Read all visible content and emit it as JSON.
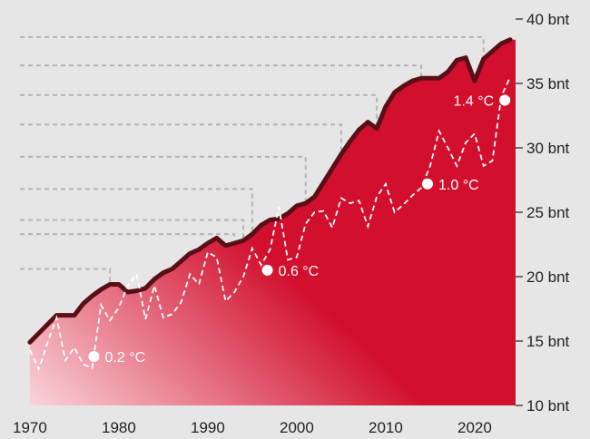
{
  "chart_data": {
    "type": "area",
    "title": "",
    "xlabel": "",
    "ylabel": "",
    "xlim": [
      1969.7,
      2024.6
    ],
    "ylim": [
      10,
      40
    ],
    "x_ticks": [
      "1970",
      "1980",
      "1990",
      "2000",
      "2010",
      "2020"
    ],
    "y_ticks": [
      {
        "value": 10,
        "label": "10 bnt"
      },
      {
        "value": 15,
        "label": "15 bnt"
      },
      {
        "value": 20,
        "label": "20 bnt"
      },
      {
        "value": 25,
        "label": "25 bnt"
      },
      {
        "value": 30,
        "label": "30 bnt"
      },
      {
        "value": 35,
        "label": "35 bnt"
      },
      {
        "value": 40,
        "label": "40 bnt"
      }
    ],
    "emissions": {
      "x": [
        1970,
        1971,
        1972,
        1973,
        1974,
        1975,
        1976,
        1977,
        1978,
        1979,
        1980,
        1981,
        1982,
        1983,
        1984,
        1985,
        1986,
        1987,
        1988,
        1989,
        1990,
        1991,
        1992,
        1993,
        1994,
        1995,
        1996,
        1997,
        1998,
        1999,
        2000,
        2001,
        2002,
        2003,
        2004,
        2005,
        2006,
        2007,
        2008,
        2009,
        2010,
        2011,
        2012,
        2013,
        2014,
        2015,
        2016,
        2017,
        2018,
        2019,
        2020,
        2021,
        2022,
        2023,
        2024
      ],
      "values": [
        14.9,
        15.6,
        16.3,
        17.0,
        17.0,
        17.0,
        17.9,
        18.5,
        19.0,
        19.4,
        19.4,
        18.8,
        18.9,
        19.1,
        19.8,
        20.3,
        20.6,
        21.2,
        21.8,
        22.1,
        22.6,
        23.0,
        22.4,
        22.6,
        22.8,
        23.3,
        24.0,
        24.4,
        24.5,
        24.9,
        25.5,
        25.7,
        26.2,
        27.3,
        28.4,
        29.5,
        30.5,
        31.4,
        32.0,
        31.5,
        33.2,
        34.3,
        34.8,
        35.2,
        35.4,
        35.4,
        35.4,
        35.9,
        36.8,
        37.0,
        35.2,
        36.9,
        37.5,
        38.1,
        38.4
      ]
    },
    "temperature": {
      "x": [
        1970,
        1971,
        1972,
        1973,
        1974,
        1975,
        1976,
        1977,
        1978,
        1979,
        1980,
        1981,
        1982,
        1983,
        1984,
        1985,
        1986,
        1987,
        1988,
        1989,
        1990,
        1991,
        1992,
        1993,
        1994,
        1995,
        1996,
        1997,
        1998,
        1999,
        2000,
        2001,
        2002,
        2003,
        2004,
        2005,
        2006,
        2007,
        2008,
        2009,
        2010,
        2011,
        2012,
        2013,
        2014,
        2015,
        2016,
        2017,
        2018,
        2019,
        2020,
        2021,
        2022,
        2023,
        2024
      ],
      "values": [
        14.3,
        12.8,
        14.9,
        16.8,
        13.5,
        14.5,
        13.2,
        12.9,
        17.8,
        16.6,
        17.6,
        19.3,
        20.2,
        16.7,
        19.3,
        16.8,
        17.1,
        18.0,
        20.2,
        19.4,
        21.9,
        21.5,
        18.1,
        18.8,
        20.0,
        22.2,
        20.9,
        22.1,
        25.4,
        21.3,
        21.5,
        24.1,
        25.0,
        25.1,
        23.8,
        26.1,
        25.7,
        25.9,
        23.9,
        26.2,
        27.2,
        25.0,
        25.6,
        26.3,
        26.9,
        28.6,
        31.3,
        30.0,
        28.6,
        30.4,
        31.1,
        28.6,
        29.0,
        34.0,
        35.5
      ]
    },
    "annotations": [
      {
        "x": 1977.2,
        "y": 13.8,
        "label": "0.2 °C"
      },
      {
        "x": 1996.7,
        "y": 20.5,
        "label": "0.6 °C"
      },
      {
        "x": 2014.7,
        "y": 27.2,
        "label": "1.0 °C"
      },
      {
        "x": 2023.4,
        "y": 33.7,
        "label": "1.4 °C"
      }
    ],
    "guide_lines": [
      {
        "y": 20.6,
        "x_drop": 1979
      },
      {
        "y": 23.3,
        "x_drop": 1993
      },
      {
        "y": 24.4,
        "x_drop": 1994
      },
      {
        "y": 26.8,
        "x_drop": 1995
      },
      {
        "y": 29.3,
        "x_drop": 2001
      },
      {
        "y": 31.8,
        "x_drop": 2005
      },
      {
        "y": 34.1,
        "x_drop": 2009
      },
      {
        "y": 36.4,
        "x_drop": 2014
      },
      {
        "y": 38.6,
        "x_drop": 2021
      }
    ],
    "colors": {
      "background": "#e6e6e6",
      "area_light": "#fad4da",
      "area_dark": "#d20f2d",
      "emissions_line": "#5a0f16",
      "temperature_line": "#ffffff",
      "guide_lines": "#b4b4b4",
      "text": "#222222"
    },
    "grid": false,
    "legend": "none"
  }
}
